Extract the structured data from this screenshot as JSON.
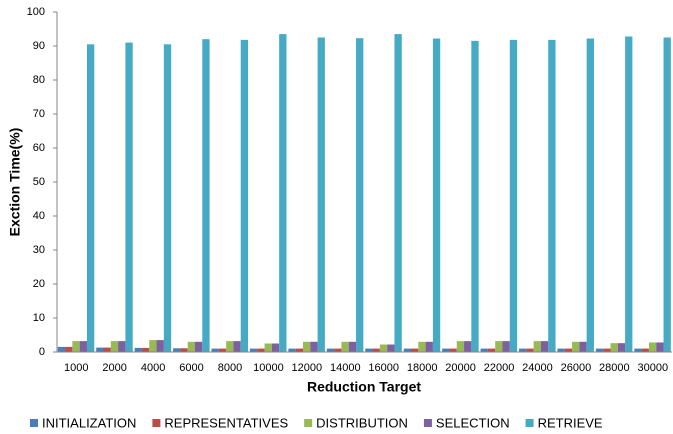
{
  "chart_data": {
    "type": "bar",
    "x_label": "Reduction Target",
    "y_label": "Exction Time(%)",
    "categories": [
      "1000",
      "2000",
      "4000",
      "6000",
      "8000",
      "10000",
      "12000",
      "14000",
      "16000",
      "18000",
      "20000",
      "22000",
      "24000",
      "26000",
      "28000",
      "30000"
    ],
    "series": [
      {
        "name": "INITIALIZATION",
        "color": "#4a7ebb",
        "values": [
          1.5,
          1.3,
          1.2,
          1.1,
          1.0,
          1.0,
          1.0,
          1.0,
          1.0,
          1.0,
          1.0,
          1.0,
          1.0,
          1.0,
          1.0,
          1.0
        ]
      },
      {
        "name": "REPRESENTATIVES",
        "color": "#be4b48",
        "values": [
          1.5,
          1.3,
          1.2,
          1.1,
          1.0,
          1.0,
          1.0,
          1.0,
          1.0,
          1.0,
          1.0,
          1.0,
          1.0,
          1.0,
          1.0,
          1.0
        ]
      },
      {
        "name": "DISTRIBUTION",
        "color": "#98b954",
        "values": [
          3.2,
          3.2,
          3.5,
          3.0,
          3.2,
          2.5,
          3.0,
          3.0,
          2.2,
          3.0,
          3.2,
          3.2,
          3.2,
          3.0,
          2.6,
          2.8
        ]
      },
      {
        "name": "SELECTION",
        "color": "#7d60a0",
        "values": [
          3.2,
          3.2,
          3.5,
          3.0,
          3.2,
          2.5,
          3.0,
          3.0,
          2.2,
          3.0,
          3.2,
          3.2,
          3.2,
          3.0,
          2.6,
          2.8
        ]
      },
      {
        "name": "RETRIEVE",
        "color": "#46aac5",
        "values": [
          90.5,
          91.0,
          90.5,
          92.0,
          91.8,
          93.5,
          92.5,
          92.3,
          93.5,
          92.2,
          91.5,
          91.8,
          91.8,
          92.2,
          92.8,
          92.5
        ]
      }
    ],
    "ylim": [
      0,
      100
    ],
    "yticks": [
      0,
      10,
      20,
      30,
      40,
      50,
      60,
      70,
      80,
      90,
      100
    ],
    "grid": false,
    "legend": "bottom"
  }
}
